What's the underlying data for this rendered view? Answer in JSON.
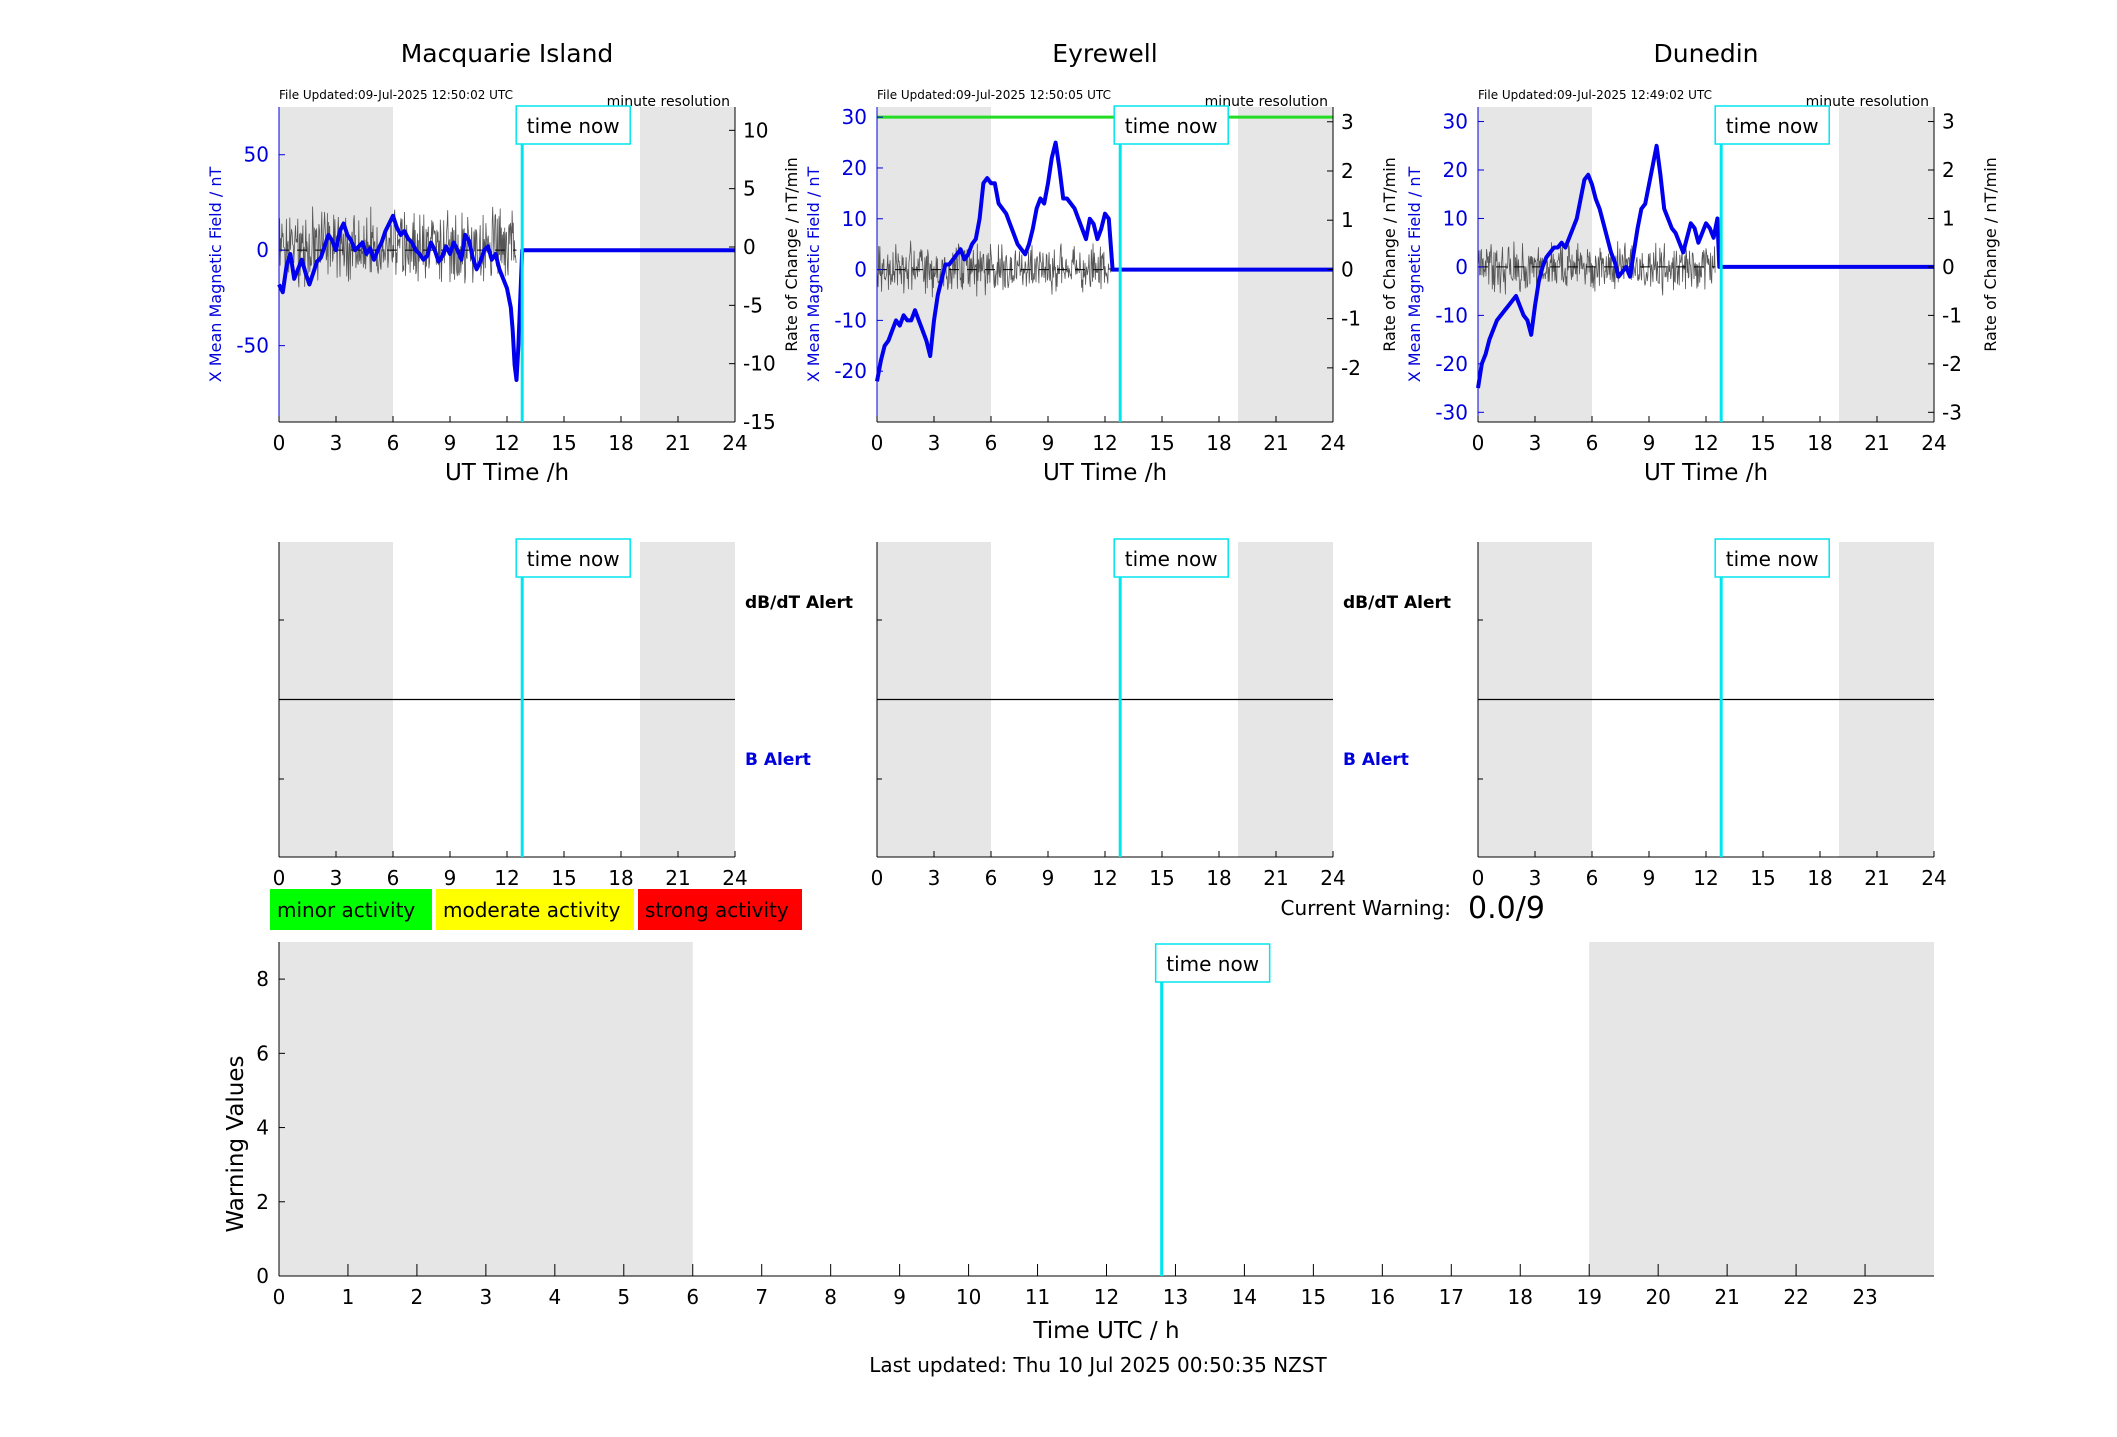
{
  "stations": [
    {
      "name": "Macquarie Island",
      "file_updated": "File Updated:09-Jul-2025 12:50:02 UTC",
      "resolution": "minute resolution",
      "ylabel_left": "X Mean Magnetic Field / nT",
      "ylabel_right": "Rate of Change / nT/min",
      "x_label": "UT Time /h",
      "left_ylim": [
        -90,
        75
      ],
      "left_ticks": [
        -50,
        0,
        50
      ],
      "right_ylim": [
        -15,
        12
      ],
      "right_ticks": [
        -15,
        -10,
        -5,
        0,
        5,
        10
      ],
      "time_now_label": "time now",
      "dbdt_alert_label": "dB/dT Alert",
      "b_alert_label": "B Alert",
      "threshold": null,
      "rate_amp": 4,
      "field_series": [
        [
          0.0,
          -18
        ],
        [
          0.2,
          -22
        ],
        [
          0.4,
          -8
        ],
        [
          0.6,
          -2
        ],
        [
          0.8,
          -15
        ],
        [
          1.0,
          -10
        ],
        [
          1.2,
          -5
        ],
        [
          1.4,
          -12
        ],
        [
          1.6,
          -18
        ],
        [
          1.8,
          -12
        ],
        [
          2.0,
          -6
        ],
        [
          2.2,
          -4
        ],
        [
          2.4,
          2
        ],
        [
          2.6,
          8
        ],
        [
          2.8,
          5
        ],
        [
          3.0,
          0
        ],
        [
          3.2,
          10
        ],
        [
          3.4,
          14
        ],
        [
          3.6,
          8
        ],
        [
          3.8,
          5
        ],
        [
          4.0,
          0
        ],
        [
          4.2,
          2
        ],
        [
          4.4,
          4
        ],
        [
          4.6,
          -2
        ],
        [
          4.8,
          1
        ],
        [
          5.0,
          -5
        ],
        [
          5.2,
          0
        ],
        [
          5.4,
          4
        ],
        [
          5.6,
          10
        ],
        [
          5.8,
          14
        ],
        [
          6.0,
          18
        ],
        [
          6.2,
          12
        ],
        [
          6.4,
          8
        ],
        [
          6.6,
          10
        ],
        [
          6.8,
          6
        ],
        [
          7.0,
          4
        ],
        [
          7.2,
          0
        ],
        [
          7.4,
          -2
        ],
        [
          7.6,
          -5
        ],
        [
          7.8,
          -3
        ],
        [
          8.0,
          4
        ],
        [
          8.2,
          0
        ],
        [
          8.4,
          -6
        ],
        [
          8.6,
          -3
        ],
        [
          8.8,
          2
        ],
        [
          9.0,
          -2
        ],
        [
          9.2,
          4
        ],
        [
          9.4,
          0
        ],
        [
          9.6,
          -5
        ],
        [
          9.8,
          8
        ],
        [
          10.0,
          5
        ],
        [
          10.2,
          -4
        ],
        [
          10.4,
          -10
        ],
        [
          10.6,
          -6
        ],
        [
          10.8,
          0
        ],
        [
          11.0,
          2
        ],
        [
          11.2,
          -5
        ],
        [
          11.4,
          -2
        ],
        [
          11.6,
          -10
        ],
        [
          11.8,
          -15
        ],
        [
          12.0,
          -20
        ],
        [
          12.2,
          -30
        ],
        [
          12.3,
          -42
        ],
        [
          12.4,
          -60
        ],
        [
          12.5,
          -68
        ],
        [
          12.6,
          -50
        ],
        [
          12.7,
          -25
        ],
        [
          12.8,
          0
        ],
        [
          24.0,
          0
        ]
      ],
      "shading": [
        [
          0,
          6
        ],
        [
          19,
          24
        ]
      ]
    },
    {
      "name": "Eyrewell",
      "file_updated": "File Updated:09-Jul-2025 12:50:05 UTC",
      "resolution": "minute resolution",
      "ylabel_left": "X Mean Magnetic Field / nT",
      "ylabel_right": "Rate of Change / nT/min",
      "x_label": "UT Time /h",
      "left_ylim": [
        -30,
        32
      ],
      "left_ticks": [
        -20,
        -10,
        0,
        10,
        20,
        30
      ],
      "right_ylim": [
        -3.1,
        3.3
      ],
      "right_ticks": [
        -2,
        -1,
        0,
        1,
        2,
        3
      ],
      "time_now_label": "time now",
      "dbdt_alert_label": "dB/dT Alert",
      "b_alert_label": "B Alert",
      "threshold": 30,
      "threshold_color": "#22dd22",
      "rate_amp": 0.6,
      "field_series": [
        [
          0.0,
          -22
        ],
        [
          0.2,
          -18
        ],
        [
          0.4,
          -15
        ],
        [
          0.6,
          -14
        ],
        [
          0.8,
          -12
        ],
        [
          1.0,
          -10
        ],
        [
          1.2,
          -11
        ],
        [
          1.4,
          -9
        ],
        [
          1.6,
          -10
        ],
        [
          1.8,
          -10
        ],
        [
          2.0,
          -8
        ],
        [
          2.2,
          -10
        ],
        [
          2.4,
          -12
        ],
        [
          2.6,
          -14
        ],
        [
          2.8,
          -17
        ],
        [
          3.0,
          -10
        ],
        [
          3.2,
          -5
        ],
        [
          3.4,
          -2
        ],
        [
          3.6,
          1
        ],
        [
          3.8,
          1
        ],
        [
          4.0,
          2
        ],
        [
          4.2,
          3
        ],
        [
          4.4,
          4
        ],
        [
          4.6,
          2
        ],
        [
          4.8,
          3
        ],
        [
          5.0,
          5
        ],
        [
          5.2,
          6
        ],
        [
          5.4,
          10
        ],
        [
          5.6,
          17
        ],
        [
          5.8,
          18
        ],
        [
          6.0,
          17
        ],
        [
          6.2,
          17
        ],
        [
          6.4,
          13
        ],
        [
          6.6,
          12
        ],
        [
          6.8,
          11
        ],
        [
          7.0,
          9
        ],
        [
          7.2,
          7
        ],
        [
          7.4,
          5
        ],
        [
          7.6,
          4
        ],
        [
          7.8,
          3
        ],
        [
          8.0,
          5
        ],
        [
          8.2,
          8
        ],
        [
          8.4,
          12
        ],
        [
          8.6,
          14
        ],
        [
          8.8,
          13
        ],
        [
          9.0,
          17
        ],
        [
          9.2,
          22
        ],
        [
          9.4,
          25
        ],
        [
          9.6,
          20
        ],
        [
          9.8,
          14
        ],
        [
          10.0,
          14
        ],
        [
          10.2,
          13
        ],
        [
          10.4,
          12
        ],
        [
          10.6,
          10
        ],
        [
          10.8,
          8
        ],
        [
          11.0,
          6
        ],
        [
          11.2,
          10
        ],
        [
          11.4,
          9
        ],
        [
          11.6,
          6
        ],
        [
          11.8,
          8
        ],
        [
          12.0,
          11
        ],
        [
          12.2,
          10
        ],
        [
          12.4,
          0
        ],
        [
          24.0,
          0
        ]
      ],
      "shading": [
        [
          0,
          6
        ],
        [
          19,
          24
        ]
      ]
    },
    {
      "name": "Dunedin",
      "file_updated": "File Updated:09-Jul-2025 12:49:02 UTC",
      "resolution": "minute resolution",
      "ylabel_left": "X Mean Magnetic Field / nT",
      "ylabel_right": "Rate of Change / nT/min",
      "x_label": "UT Time /h",
      "left_ylim": [
        -32,
        33
      ],
      "left_ticks": [
        -30,
        -20,
        -10,
        0,
        10,
        20,
        30
      ],
      "right_ylim": [
        -3.2,
        3.3
      ],
      "right_ticks": [
        -3,
        -2,
        -1,
        0,
        1,
        2,
        3
      ],
      "time_now_label": "time now",
      "dbdt_alert_label": "dB/dT Alert",
      "b_alert_label": "B Alert",
      "threshold": null,
      "rate_amp": 0.6,
      "field_series": [
        [
          0.0,
          -25
        ],
        [
          0.2,
          -20
        ],
        [
          0.4,
          -18
        ],
        [
          0.6,
          -15
        ],
        [
          0.8,
          -13
        ],
        [
          1.0,
          -11
        ],
        [
          1.2,
          -10
        ],
        [
          1.4,
          -9
        ],
        [
          1.6,
          -8
        ],
        [
          1.8,
          -7
        ],
        [
          2.0,
          -6
        ],
        [
          2.2,
          -8
        ],
        [
          2.4,
          -10
        ],
        [
          2.6,
          -11
        ],
        [
          2.8,
          -14
        ],
        [
          3.0,
          -8
        ],
        [
          3.2,
          -3
        ],
        [
          3.4,
          0
        ],
        [
          3.6,
          2
        ],
        [
          3.8,
          3
        ],
        [
          4.0,
          4
        ],
        [
          4.2,
          4
        ],
        [
          4.4,
          5
        ],
        [
          4.6,
          4
        ],
        [
          4.8,
          6
        ],
        [
          5.0,
          8
        ],
        [
          5.2,
          10
        ],
        [
          5.4,
          14
        ],
        [
          5.6,
          18
        ],
        [
          5.8,
          19
        ],
        [
          6.0,
          17
        ],
        [
          6.2,
          14
        ],
        [
          6.4,
          12
        ],
        [
          6.6,
          9
        ],
        [
          6.8,
          6
        ],
        [
          7.0,
          3
        ],
        [
          7.2,
          1
        ],
        [
          7.4,
          -2
        ],
        [
          7.6,
          -1
        ],
        [
          7.8,
          0
        ],
        [
          8.0,
          -2
        ],
        [
          8.2,
          3
        ],
        [
          8.4,
          8
        ],
        [
          8.6,
          12
        ],
        [
          8.8,
          13
        ],
        [
          9.0,
          17
        ],
        [
          9.2,
          21
        ],
        [
          9.4,
          25
        ],
        [
          9.6,
          19
        ],
        [
          9.8,
          12
        ],
        [
          10.0,
          10
        ],
        [
          10.2,
          8
        ],
        [
          10.4,
          7
        ],
        [
          10.6,
          5
        ],
        [
          10.8,
          3
        ],
        [
          11.0,
          6
        ],
        [
          11.2,
          9
        ],
        [
          11.4,
          8
        ],
        [
          11.6,
          5
        ],
        [
          11.8,
          7
        ],
        [
          12.0,
          9
        ],
        [
          12.2,
          8
        ],
        [
          12.4,
          6
        ],
        [
          12.6,
          10
        ],
        [
          12.7,
          0
        ],
        [
          24.0,
          0
        ]
      ],
      "shading": [
        [
          0,
          6
        ],
        [
          19,
          24
        ]
      ]
    }
  ],
  "now_hour": 12.8,
  "x_ticks": [
    0,
    3,
    6,
    9,
    12,
    15,
    18,
    21,
    24
  ],
  "legend": [
    {
      "label": "minor activity",
      "color": "#00ff00"
    },
    {
      "label": "moderate activity",
      "color": "#ffff00"
    },
    {
      "label": "strong activity",
      "color": "#ff0000"
    }
  ],
  "current_warning_label": "Current Warning:",
  "current_warning_value": "0.0/9",
  "warning_chart": {
    "ylabel": "Warning Values",
    "xlabel": "Time UTC / h",
    "ylim": [
      0,
      9
    ],
    "yticks": [
      0,
      2,
      4,
      6,
      8
    ],
    "xticks": [
      0,
      1,
      2,
      3,
      4,
      5,
      6,
      7,
      8,
      9,
      10,
      11,
      12,
      13,
      14,
      15,
      16,
      17,
      18,
      19,
      20,
      21,
      22,
      23
    ],
    "xlim": [
      0,
      24
    ],
    "shading": [
      [
        0,
        6
      ],
      [
        19,
        24
      ]
    ],
    "time_now_label": "time now",
    "values": []
  },
  "footer": "Last updated: Thu 10 Jul 2025 00:50:35 NZST",
  "colors": {
    "field": "#0000ee",
    "rate": "#555555",
    "now_line": "#00e5ee",
    "shading": "#e6e6e6",
    "axis_blue": "#0000dd"
  },
  "chart_data": [
    {
      "type": "line",
      "title": "Macquarie Island",
      "xlabel": "UT Time /h",
      "ylabel": "X Mean Magnetic Field / nT",
      "xlim": [
        0,
        24
      ]
    },
    {
      "type": "line",
      "title": "Eyrewell",
      "xlabel": "UT Time /h",
      "ylabel": "X Mean Magnetic Field / nT",
      "xlim": [
        0,
        24
      ]
    },
    {
      "type": "line",
      "title": "Dunedin",
      "xlabel": "UT Time /h",
      "ylabel": "X Mean Magnetic Field / nT",
      "xlim": [
        0,
        24
      ]
    },
    {
      "type": "bar",
      "xlabel": "Time UTC / h",
      "ylabel": "Warning Values",
      "ylim": [
        0,
        9
      ],
      "values": []
    }
  ]
}
